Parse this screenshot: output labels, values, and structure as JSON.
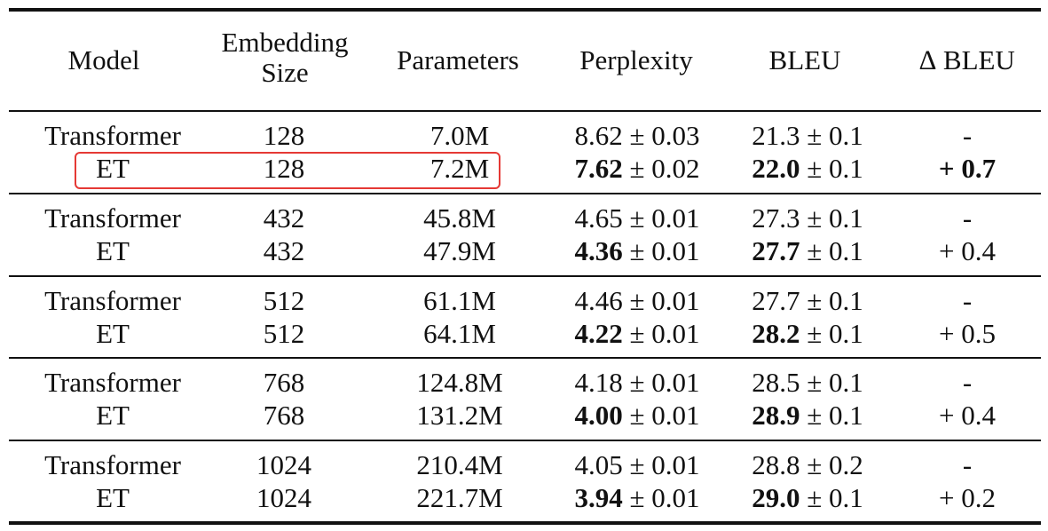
{
  "table": {
    "headers": {
      "model": "Model",
      "embedding_line1": "Embedding",
      "embedding_line2": "Size",
      "parameters": "Parameters",
      "perplexity": "Perplexity",
      "bleu": "BLEU",
      "delta_bleu": "∆ BLEU"
    },
    "groups": [
      {
        "rows": [
          {
            "model": "Transformer",
            "emb": "128",
            "params": "7.0M",
            "ppl_val": "8.62",
            "ppl_err": " ± 0.03",
            "bleu_val": "21.3",
            "bleu_err": " ± 0.1",
            "delta": "-",
            "bold": false
          },
          {
            "model": "ET",
            "emb": "128",
            "params": "7.2M",
            "ppl_val": "7.62",
            "ppl_err": " ± 0.02",
            "bleu_val": "22.0",
            "bleu_err": " ± 0.1",
            "delta": "+ 0.7",
            "bold": true,
            "delta_bold": true
          }
        ]
      },
      {
        "rows": [
          {
            "model": "Transformer",
            "emb": "432",
            "params": "45.8M",
            "ppl_val": "4.65",
            "ppl_err": " ± 0.01",
            "bleu_val": "27.3",
            "bleu_err": " ± 0.1",
            "delta": "-",
            "bold": false
          },
          {
            "model": "ET",
            "emb": "432",
            "params": "47.9M",
            "ppl_val": "4.36",
            "ppl_err": " ± 0.01",
            "bleu_val": "27.7",
            "bleu_err": " ± 0.1",
            "delta": "+ 0.4",
            "bold": true,
            "delta_bold": false
          }
        ]
      },
      {
        "rows": [
          {
            "model": "Transformer",
            "emb": "512",
            "params": "61.1M",
            "ppl_val": "4.46",
            "ppl_err": " ± 0.01",
            "bleu_val": "27.7",
            "bleu_err": " ± 0.1",
            "delta": "-",
            "bold": false
          },
          {
            "model": "ET",
            "emb": "512",
            "params": "64.1M",
            "ppl_val": "4.22",
            "ppl_err": " ± 0.01",
            "bleu_val": "28.2",
            "bleu_err": " ± 0.1",
            "delta": "+ 0.5",
            "bold": true,
            "delta_bold": false
          }
        ]
      },
      {
        "rows": [
          {
            "model": "Transformer",
            "emb": "768",
            "params": "124.8M",
            "ppl_val": "4.18",
            "ppl_err": " ± 0.01",
            "bleu_val": "28.5",
            "bleu_err": " ± 0.1",
            "delta": "-",
            "bold": false
          },
          {
            "model": "ET",
            "emb": "768",
            "params": "131.2M",
            "ppl_val": "4.00",
            "ppl_err": " ± 0.01",
            "bleu_val": "28.9",
            "bleu_err": " ± 0.1",
            "delta": "+ 0.4",
            "bold": true,
            "delta_bold": false
          }
        ]
      },
      {
        "rows": [
          {
            "model": "Transformer",
            "emb": "1024",
            "params": "210.4M",
            "ppl_val": "4.05",
            "ppl_err": " ± 0.01",
            "bleu_val": "28.8",
            "bleu_err": " ± 0.2",
            "delta": "-",
            "bold": false
          },
          {
            "model": "ET",
            "emb": "1024",
            "params": "221.7M",
            "ppl_val": "3.94",
            "ppl_err": " ± 0.01",
            "bleu_val": "29.0",
            "bleu_err": " ± 0.1",
            "delta": "+ 0.2",
            "bold": true,
            "delta_bold": false
          }
        ]
      }
    ],
    "highlight_color": "#e53935"
  }
}
